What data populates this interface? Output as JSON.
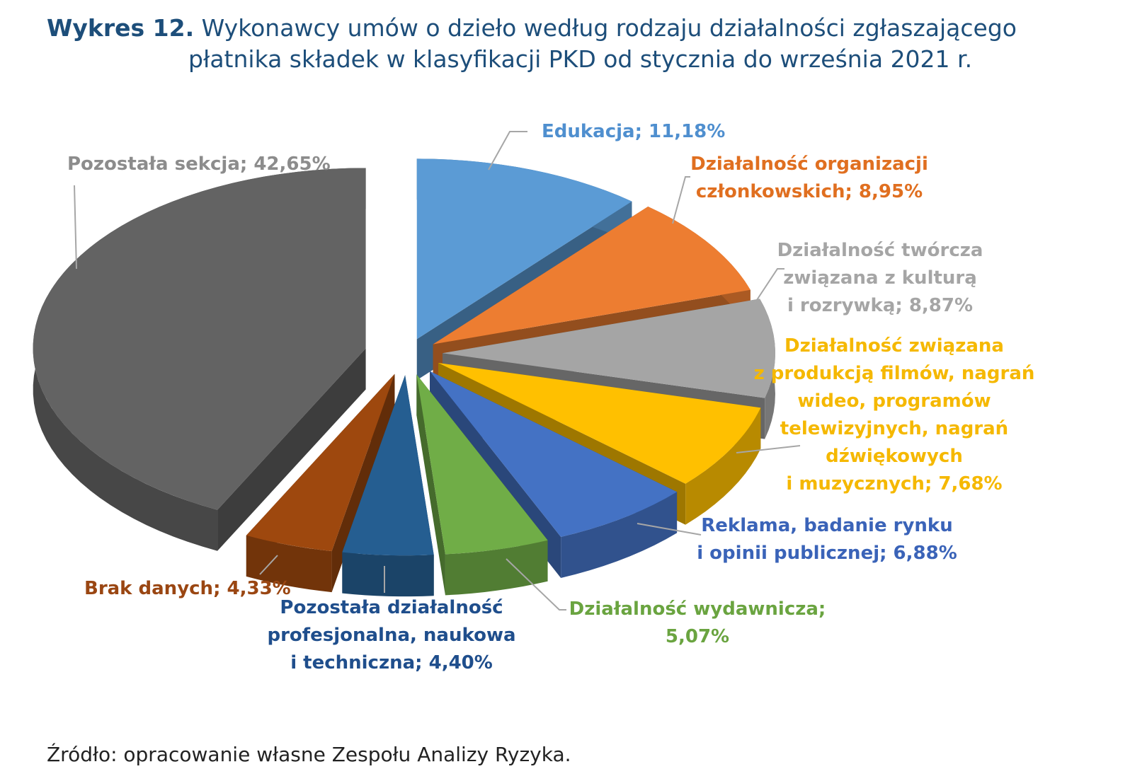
{
  "header": {
    "title_lead": "Wykres 12.",
    "title_line1": "Wykonawcy umów o dzieło według rodzaju działalności zgłaszającego",
    "title_line2": "płatnika składek w klasyfikacji PKD od stycznia do września 2021 r."
  },
  "footer": {
    "source": "Źródło: opracowanie własne Zespołu Analizy Ryzyka."
  },
  "chart_data": {
    "type": "pie",
    "style": "3d-exploded",
    "title": "",
    "slices": [
      {
        "name": "Edukacja",
        "value": 11.18,
        "value_label": "11,18%",
        "color": "#5b9bd5",
        "label_lines": [
          "Edukacja; 11,18%"
        ]
      },
      {
        "name": "Działalność organizacji członkowskich",
        "value": 8.95,
        "value_label": "8,95%",
        "color": "#ed7d31",
        "label_lines": [
          "Działalność organizacji",
          "członkowskich; 8,95%"
        ]
      },
      {
        "name": "Działalność twórcza związana z kulturą i rozrywką",
        "value": 8.87,
        "value_label": "8,87%",
        "color": "#a5a5a5",
        "label_lines": [
          "Działalność twórcza",
          "związana z kulturą",
          "i rozrywką; 8,87%"
        ]
      },
      {
        "name": "Działalność związana z produkcją filmów, nagrań wideo, programów telewizyjnych, nagrań dźwiękowych i muzycznych",
        "value": 7.68,
        "value_label": "7,68%",
        "color": "#ffc000",
        "label_lines": [
          "Działalność związana",
          "z produkcją filmów, nagrań",
          "wideo, programów",
          "telewizyjnych, nagrań",
          "dźwiękowych",
          "i muzycznych; 7,68%"
        ]
      },
      {
        "name": "Reklama, badanie rynku i opinii publicznej",
        "value": 6.88,
        "value_label": "6,88%",
        "color": "#4472c4",
        "label_lines": [
          "Reklama, badanie rynku",
          "i opinii publicznej; 6,88%"
        ]
      },
      {
        "name": "Działalność wydawnicza",
        "value": 5.07,
        "value_label": "5,07%",
        "color": "#70ad47",
        "label_lines": [
          "Działalność wydawnicza;",
          "5,07%"
        ]
      },
      {
        "name": "Pozostała działalność profesjonalna, naukowa i techniczna",
        "value": 4.4,
        "value_label": "4,40%",
        "color": "#255e91",
        "label_lines": [
          "Pozostała działalność",
          "profesjonalna, naukowa",
          "i techniczna; 4,40%"
        ]
      },
      {
        "name": "Brak danych",
        "value": 4.33,
        "value_label": "4,33%",
        "color": "#9e480e",
        "label_lines": [
          "Brak danych; 4,33%"
        ]
      },
      {
        "name": "Pozostała sekcja",
        "value": 42.65,
        "value_label": "42,65%",
        "color": "#636363",
        "label_lines": [
          "Pozostała sekcja; 42,65%"
        ]
      }
    ],
    "label_colors": [
      "#4f8fcf",
      "#e06f20",
      "#a5a5a5",
      "#f5b800",
      "#3a63b8",
      "#6aa440",
      "#1f4e8c",
      "#9a4612",
      "#8c8c8c"
    ],
    "legend": "none"
  }
}
